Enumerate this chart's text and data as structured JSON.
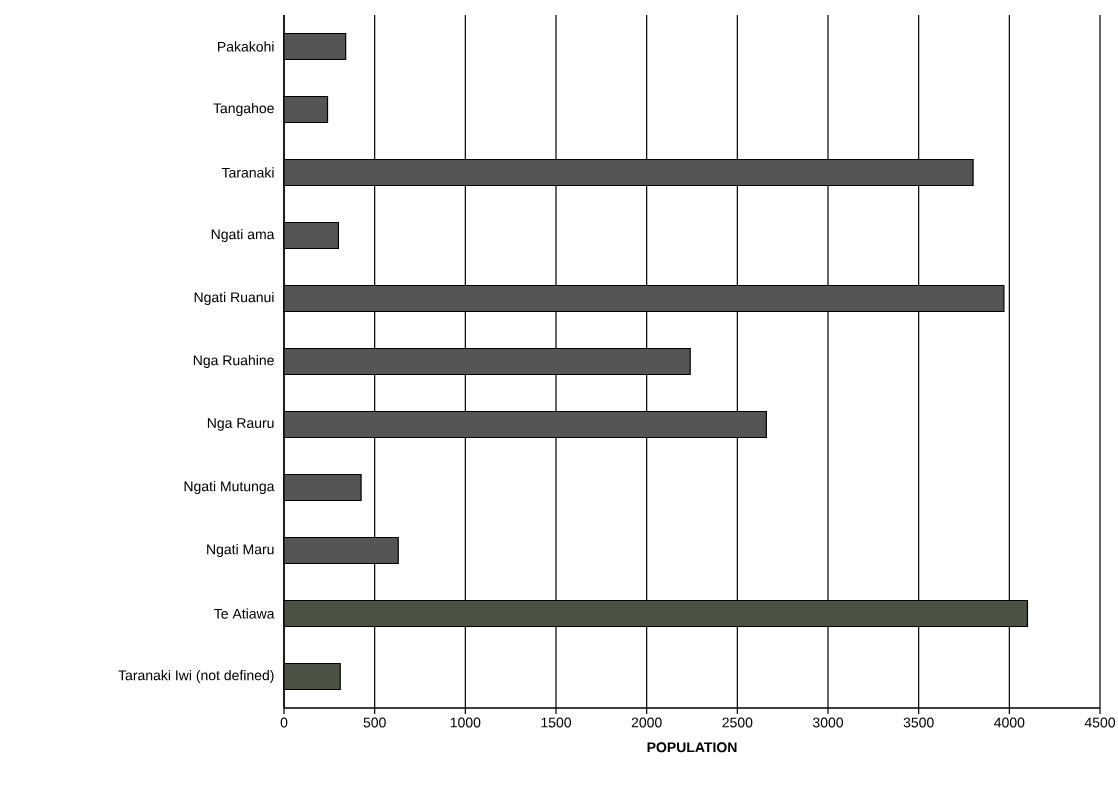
{
  "chart_data": {
    "type": "bar",
    "orientation": "horizontal",
    "xlabel": "POPULATION",
    "categories": [
      "Pakakohi",
      "Tangahoe",
      "Taranaki",
      "Ngati ama",
      "Ngati Ruanui",
      "Nga Ruahine",
      "Nga Rauru",
      "Ngati Mutunga",
      "Ngati Maru",
      "Te Atiawa",
      "Taranaki Iwi (not defined)"
    ],
    "values": [
      340,
      240,
      3800,
      300,
      3970,
      2240,
      2660,
      425,
      630,
      4100,
      310
    ],
    "colors": [
      "#555555",
      "#555555",
      "#555555",
      "#555555",
      "#555555",
      "#555555",
      "#555555",
      "#555555",
      "#555555",
      "#4b5243",
      "#4b5243"
    ],
    "xlim": [
      0,
      4500
    ],
    "xticks": [
      0,
      500,
      1000,
      1500,
      2000,
      2500,
      3000,
      3500,
      4000,
      4500
    ],
    "grid": "x"
  }
}
